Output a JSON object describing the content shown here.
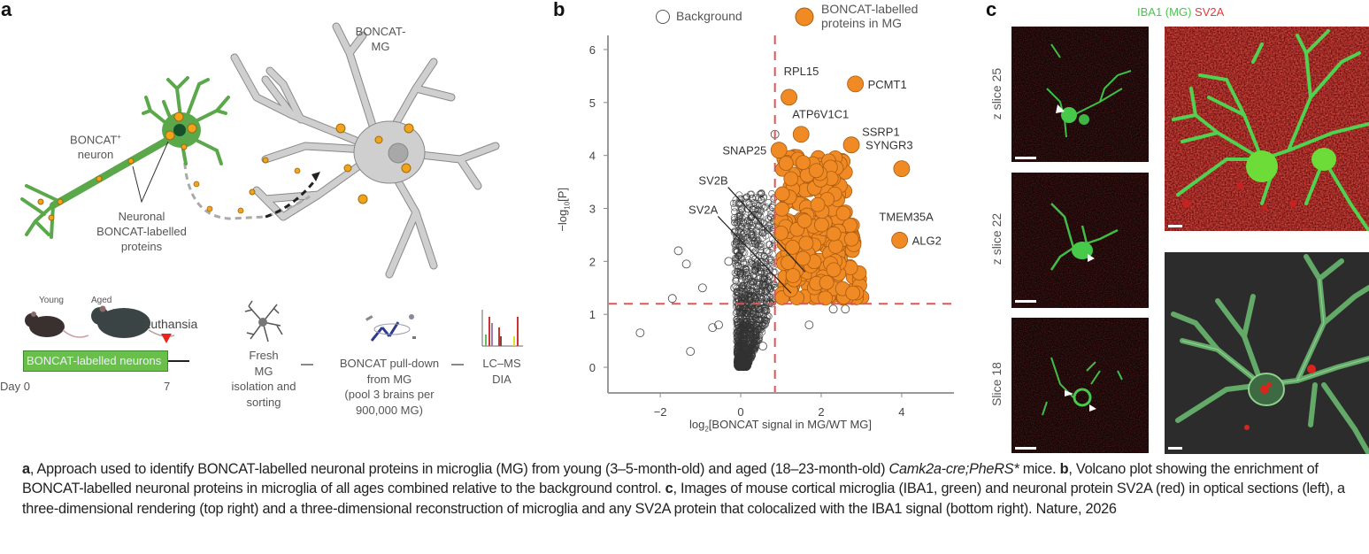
{
  "panel_a": {
    "label": "a",
    "microglia_label": [
      "BONCAT-",
      "MG"
    ],
    "neuron_label": [
      "BONCAT",
      "+",
      "neuron"
    ],
    "proteins_label": [
      "Neuronal",
      "BONCAT-labelled",
      "proteins"
    ],
    "young_label": "Young",
    "aged_label": "Aged",
    "euthanasia_label": "Euthansia",
    "bar_label": "BONCAT-labelled neurons",
    "day0_label": "Day 0",
    "day7_label": "7",
    "step1": [
      "Fresh",
      "MG",
      "isolation and",
      "sorting"
    ],
    "step2": [
      "BONCAT pull-down",
      "from MG",
      "(pool 3 brains per",
      "900,000 MG)"
    ],
    "step3": [
      "LC–MS",
      "DIA"
    ],
    "colors": {
      "neuron": "#5aa84a",
      "microglia": "#c8c8c8",
      "protein": "#f2a31c",
      "bar": "#6abf4b",
      "marker": "#e8241c"
    }
  },
  "panel_b": {
    "label": "b",
    "legend": {
      "background": "Background",
      "boncat": [
        "BONCAT-labelled",
        "proteins in MG"
      ]
    },
    "ylabel_main": "−log",
    "ylabel_sub": "10",
    "ylabel_tail": "[P]",
    "xlabel_main": "log",
    "xlabel_sub": "2",
    "xlabel_tail": "[BONCAT signal in MG/WT MG]"
  },
  "chart_data": {
    "type": "scatter",
    "title": "",
    "xlabel": "log2[BONCAT signal in MG/WT MG]",
    "ylabel": "−log10[P]",
    "xlim": [
      -3.3,
      5.3
    ],
    "ylim": [
      -0.25,
      6.1
    ],
    "xticks": [
      -2,
      0,
      2,
      4
    ],
    "yticks": [
      0,
      1,
      2,
      3,
      4,
      5,
      6
    ],
    "xtick_labels": [
      "−2",
      "0",
      "2",
      "4"
    ],
    "ytick_labels": [
      "0",
      "1",
      "2",
      "3",
      "4",
      "5",
      "6"
    ],
    "thresholds": {
      "x": 0.85,
      "y": 1.2
    },
    "legend_position": "top",
    "colors": {
      "boncat": "#f08a24",
      "background": "#333333",
      "threshold": "#e05555"
    },
    "labelled_points": [
      {
        "name": "RPL15",
        "x": 1.2,
        "y": 5.1
      },
      {
        "name": "PCMT1",
        "x": 2.85,
        "y": 5.35
      },
      {
        "name": "ATP6V1C1",
        "x": 1.5,
        "y": 4.4
      },
      {
        "name": "SSRP1",
        "x": 2.75,
        "y": 4.2
      },
      {
        "name": "SNAP25",
        "x": 0.95,
        "y": 4.1
      },
      {
        "name": "SYNGR3",
        "x": 4.0,
        "y": 3.75
      },
      {
        "name": "TMEM35A",
        "x": 3.0,
        "y": 2.85
      },
      {
        "name": "ALG2",
        "x": 3.95,
        "y": 2.4
      },
      {
        "name": "SV2B",
        "x": 1.6,
        "y": 1.8
      },
      {
        "name": "SV2A",
        "x": 1.25,
        "y": 1.4
      }
    ],
    "background_outliers": [
      {
        "x": -2.5,
        "y": 0.65
      },
      {
        "x": -1.55,
        "y": 2.2
      },
      {
        "x": -1.35,
        "y": 1.95
      },
      {
        "x": -0.3,
        "y": 2.0
      },
      {
        "x": -0.95,
        "y": 1.5
      },
      {
        "x": -0.15,
        "y": 1.5
      },
      {
        "x": -1.7,
        "y": 1.3
      },
      {
        "x": -1.25,
        "y": 0.3
      },
      {
        "x": -0.55,
        "y": 0.8
      },
      {
        "x": -0.7,
        "y": 0.75
      },
      {
        "x": 2.3,
        "y": 1.1
      },
      {
        "x": 2.6,
        "y": 1.1
      },
      {
        "x": 1.7,
        "y": 0.8
      },
      {
        "x": 0.55,
        "y": 0.4
      },
      {
        "x": 0.85,
        "y": 4.4
      }
    ]
  },
  "panel_c": {
    "label": "c",
    "title_green": "IBA1 (MG)",
    "title_red": "SV2A",
    "slices": [
      "z slice 25",
      "z slice 22",
      "Slice 18"
    ]
  },
  "caption": {
    "a_label": "a",
    "a_text": ", Approach used to identify BONCAT-labelled neuronal proteins in microglia (MG) from young (3–5-month-old) and aged (18–23-month-old) ",
    "a_genotype": "Camk2a-cre;PheRS*",
    "a_tail": " mice. ",
    "b_label": "b",
    "b_text": ", Volcano plot showing the enrichment of BONCAT-labelled neuronal proteins in microglia of all ages combined relative to the background control. ",
    "c_label": "c",
    "c_text": ", Images of mouse cortical microglia (IBA1, green) and neuronal protein SV2A (red) in optical sections (left), a three-dimensional rendering (top right) and a three-dimensional reconstruction of microglia and any SV2A protein that colocalized with the IBA1 signal (bottom right). Nature, 2026"
  }
}
